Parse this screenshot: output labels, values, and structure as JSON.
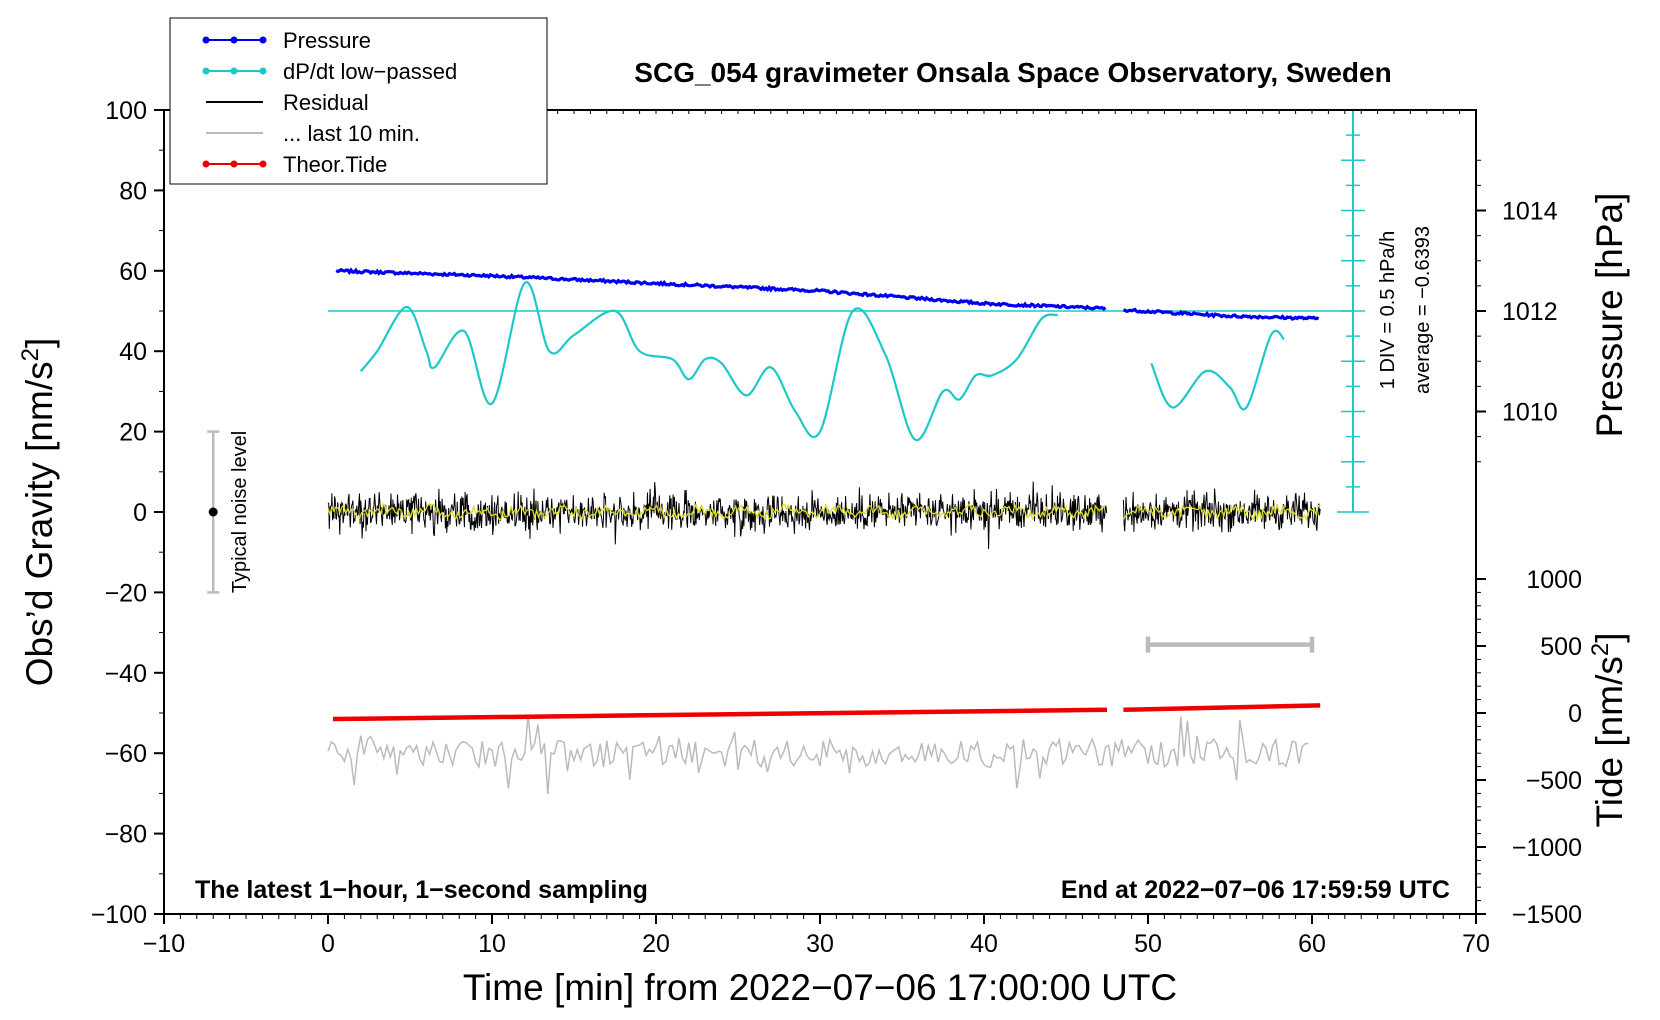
{
  "chart_data": {
    "type": "line",
    "title": "SCG_054 gravimeter Onsala Space Observatory, Sweden",
    "xlabel": "Time [min] from 2022−07−06 17:00:00 UTC",
    "ylabel_left": "Obs’d Gravity [nm/s2]",
    "ylabel_pressure": "Pressure [hPa]",
    "ylabel_tide": "Tide [nm/s2]",
    "xlim": [
      -10,
      70
    ],
    "ylim": [
      -100,
      100
    ],
    "x_ticks": [
      -10,
      0,
      10,
      20,
      30,
      40,
      50,
      60,
      70
    ],
    "x_tick_labels": [
      "−10",
      "0",
      "10",
      "20",
      "30",
      "40",
      "50",
      "60",
      "70"
    ],
    "y_ticks": [
      100,
      80,
      60,
      40,
      20,
      0,
      -20,
      -40,
      -60,
      -80,
      -100
    ],
    "y_tick_labels": [
      "100",
      "80",
      "60",
      "40",
      "20",
      "0",
      "−20",
      "−40",
      "−60",
      "−80",
      "−100"
    ],
    "pressure_axis": {
      "ticks": [
        1014,
        1012,
        1010
      ],
      "tick_labels": [
        "1014",
        "1012",
        "1010"
      ],
      "gravity_at_1012": 50,
      "gravity_per_hPa": 12.5
    },
    "tide_axis": {
      "ticks": [
        1000,
        500,
        0,
        -500,
        -1000,
        -1500
      ],
      "tick_labels": [
        "1000",
        "500",
        "0",
        "−500",
        "−1000",
        "−1500"
      ],
      "range": [
        -1500,
        1000
      ]
    },
    "legend": [
      {
        "label": "Pressure",
        "color": "#0000ee",
        "marker": true
      },
      {
        "label": "dP/dt low−passed",
        "color": "#1cc8c8",
        "marker": true
      },
      {
        "label": "Residual",
        "color": "#000000",
        "marker": false
      },
      {
        "label": "... last 10 min.",
        "color": "#bbbbbb",
        "marker": false
      },
      {
        "label": "Theor.Tide",
        "color": "#ee0000",
        "marker": true
      }
    ],
    "series": [
      {
        "name": "Pressure",
        "color": "#0000ee",
        "unit": "hPa",
        "segments": [
          {
            "x": [
              0.5,
              10,
              20,
              30,
              40,
              47.5
            ],
            "y": [
              1012.8,
              1012.7,
              1012.55,
              1012.4,
              1012.15,
              1012.05
            ]
          },
          {
            "x": [
              48.5,
              55,
              60.5
            ],
            "y": [
              1012.02,
              1011.9,
              1011.85
            ]
          }
        ]
      },
      {
        "name": "dP/dt low−passed",
        "color": "#1cc8c8",
        "unit": "nm/s2",
        "segments": [
          {
            "x": [
              2,
              3,
              4.8,
              6,
              6.5,
              8.3,
              10,
              12,
              13.5,
              15,
              17.5,
              19,
              21,
              22,
              23,
              24,
              25.5,
              27,
              28.5,
              30,
              32,
              34,
              35.8,
              37.5,
              38.5,
              39.5,
              40.5,
              42,
              43.5,
              44.5
            ],
            "y": [
              35,
              40,
              51,
              40,
              36,
              45,
              27,
              57,
              40,
              44,
              50,
              40,
              38,
              33,
              38,
              37,
              29,
              36,
              25,
              20,
              50,
              39,
              18,
              30,
              28,
              34,
              34,
              38,
              48,
              49
            ]
          },
          {
            "x": [
              50.2,
              51.5,
              53.5,
              55,
              56,
              57.5,
              58.3
            ],
            "y": [
              37,
              26,
              35,
              31,
              26,
              44,
              43
            ]
          }
        ]
      },
      {
        "name": "dP/dt average line",
        "color": "#1cc8c8",
        "x": [
          0,
          62.5
        ],
        "y": [
          50,
          50
        ]
      },
      {
        "name": "Residual",
        "color": "#000000",
        "unit": "nm/s2",
        "segments": [
          {
            "x": [
              0,
              47.5
            ],
            "noise_amplitude": 5
          },
          {
            "x": [
              48.5,
              60.5
            ],
            "noise_amplitude": 5
          }
        ]
      },
      {
        "name": "Residual low−passed",
        "color": "#dddd22",
        "unit": "nm/s2",
        "segments": [
          {
            "x": [
              0,
              47.5
            ]
          },
          {
            "x": [
              48.5,
              60.5
            ]
          }
        ]
      },
      {
        "name": "... last 10 min.",
        "color": "#bbbbbb",
        "unit": "nm/s2",
        "baseline": -60,
        "x": [
          0,
          60
        ]
      },
      {
        "name": "Theor.Tide",
        "color": "#ee0000",
        "unit": "nm/s2",
        "segments": [
          {
            "x": [
              0.3,
              47.5
            ],
            "y": [
              -51.5,
              -49.2
            ]
          },
          {
            "x": [
              48.5,
              60.5
            ],
            "y": [
              -49.2,
              -48.1
            ]
          }
        ]
      }
    ],
    "annotations": {
      "noise_bar": {
        "label": "Typical noise level",
        "x": -7,
        "y": 0,
        "y_range": [
          -20,
          20
        ]
      },
      "last10_bar": {
        "x_range": [
          50,
          60
        ],
        "y": -33
      },
      "div_scale": {
        "x": 62.5,
        "y_range": [
          0,
          100
        ],
        "minor_step": 6.25,
        "major_step": 12.5,
        "label": "1 DIV = 0.5 hPa/h",
        "average_label": "average = −0.6393"
      },
      "note_left": "The latest 1−hour, 1−second sampling",
      "note_right": "End at 2022−07−06 17:59:59 UTC"
    }
  }
}
